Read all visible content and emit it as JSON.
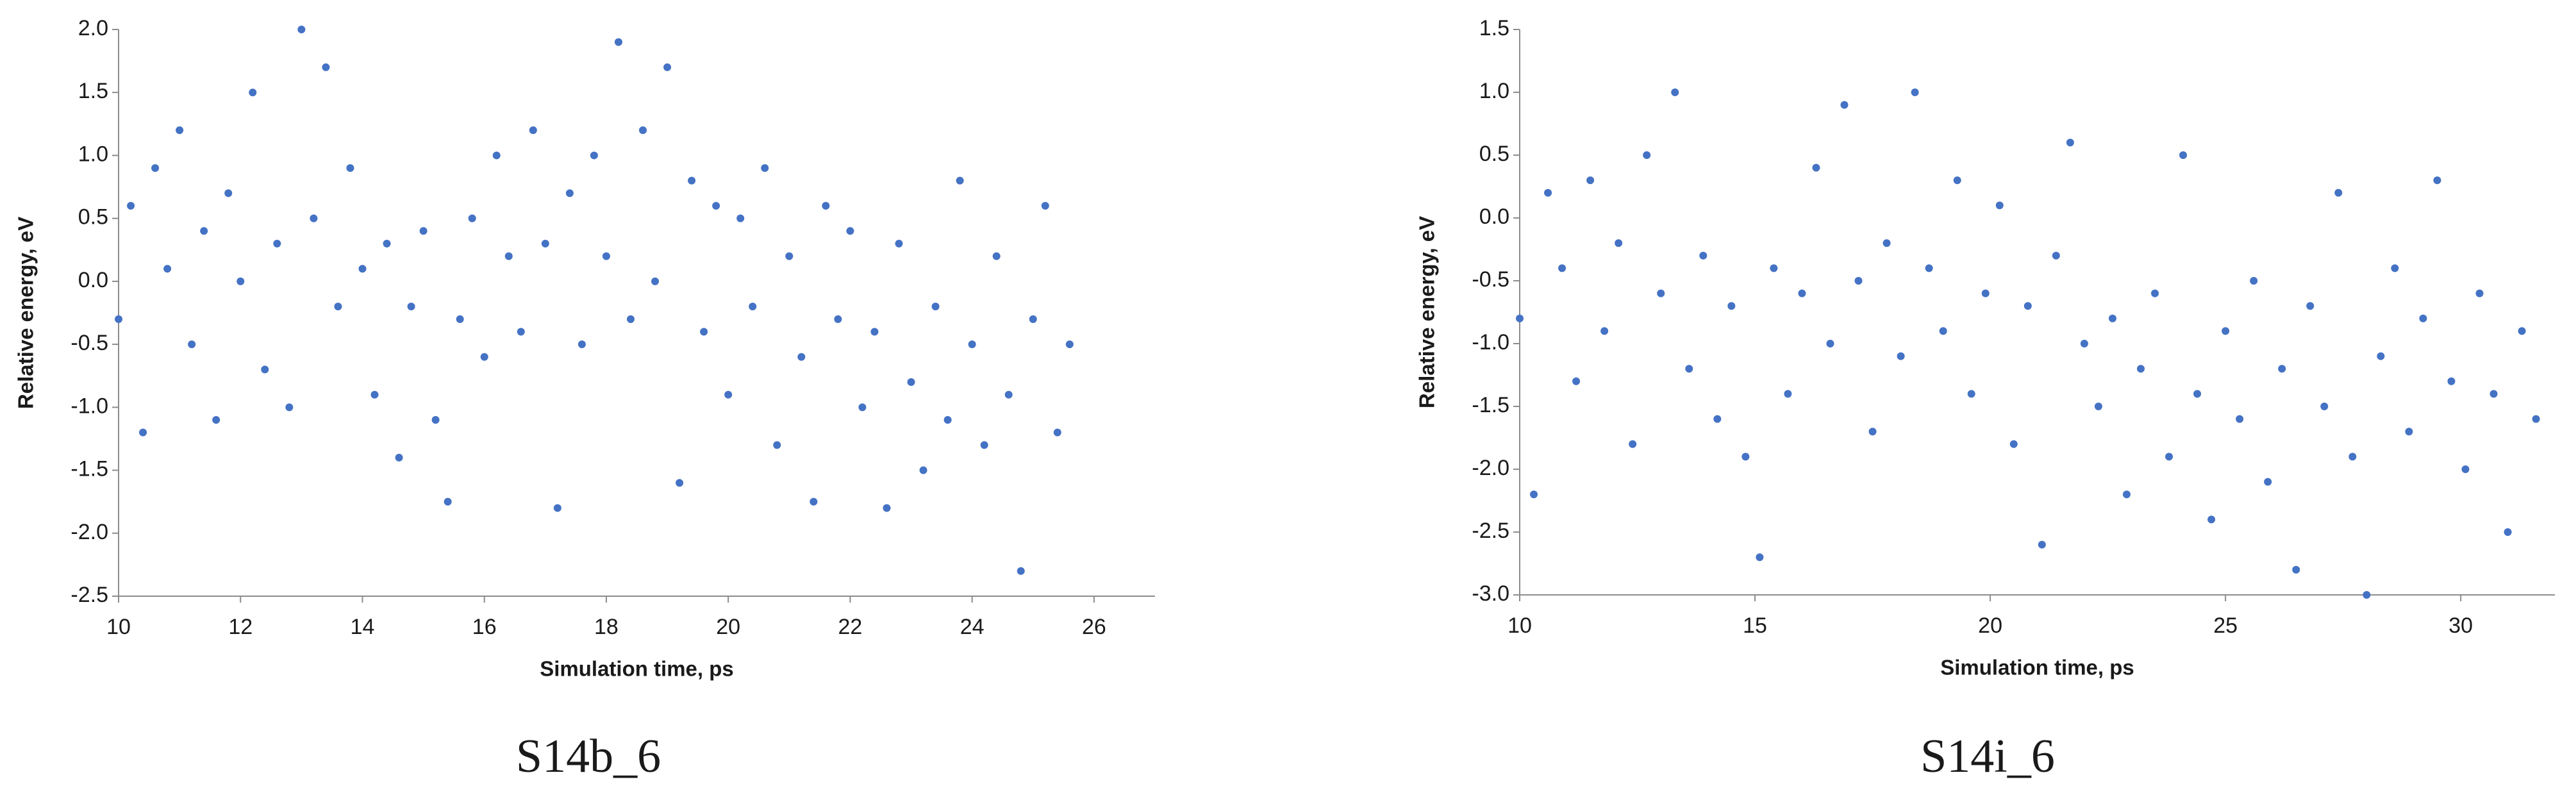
{
  "chart_data": [
    {
      "type": "scatter",
      "caption": "S14b_6",
      "x_label": "Simulation time, ps",
      "y_label": "Relative energy, eV",
      "xlim": [
        10,
        27
      ],
      "xticks": [
        10,
        12,
        14,
        16,
        18,
        20,
        22,
        24,
        26
      ],
      "ylim": [
        -2.5,
        2.0
      ],
      "yticks": [
        {
          "value": -2.5,
          "label": "-2.5"
        },
        {
          "value": -2,
          "label": "-2.0"
        },
        -1.5,
        {
          "value": -1,
          "label": "-1.0"
        },
        -0.5,
        {
          "value": 0,
          "label": "0.0"
        },
        0.5,
        {
          "value": 1,
          "label": "1.0"
        },
        1.5,
        {
          "value": 2,
          "label": "2.0"
        }
      ],
      "color": "#4472c4",
      "x": [
        10.0,
        10.2,
        10.4,
        10.6,
        10.8,
        11.0,
        11.2,
        11.4,
        11.6,
        11.8,
        12.0,
        12.2,
        12.4,
        12.6,
        12.8,
        13.0,
        13.2,
        13.4,
        13.6,
        13.8,
        14.0,
        14.2,
        14.4,
        14.6,
        14.8,
        15.0,
        15.2,
        15.4,
        15.6,
        15.8,
        16.0,
        16.2,
        16.4,
        16.6,
        16.8,
        17.0,
        17.2,
        17.4,
        17.6,
        17.8,
        18.0,
        18.2,
        18.4,
        18.6,
        18.8,
        19.0,
        19.2,
        19.4,
        19.6,
        19.8,
        20.0,
        20.2,
        20.4,
        20.6,
        20.8,
        21.0,
        21.2,
        21.4,
        21.6,
        21.8,
        22.0,
        22.2,
        22.4,
        22.6,
        22.8,
        23.0,
        23.2,
        23.4,
        23.6,
        23.8,
        24.0,
        24.2,
        24.4,
        24.6,
        24.8,
        25.0,
        25.2,
        25.4,
        25.6
      ],
      "values": [
        -0.3,
        0.6,
        -1.2,
        0.9,
        0.1,
        1.2,
        -0.5,
        0.4,
        -1.1,
        0.7,
        0.0,
        1.5,
        -0.7,
        0.3,
        -1.0,
        2.0,
        0.5,
        1.7,
        -0.2,
        0.9,
        0.1,
        -0.9,
        0.3,
        -1.4,
        -0.2,
        0.4,
        -1.1,
        -1.75,
        -0.3,
        0.5,
        -0.6,
        1.0,
        0.2,
        -0.4,
        1.2,
        0.3,
        -1.8,
        0.7,
        -0.5,
        1.0,
        0.2,
        1.9,
        -0.3,
        1.2,
        0.0,
        1.7,
        -1.6,
        0.8,
        -0.4,
        0.6,
        -0.9,
        0.5,
        -0.2,
        0.9,
        -1.3,
        0.2,
        -0.6,
        -1.75,
        0.6,
        -0.3,
        0.4,
        -1.0,
        -0.4,
        -1.8,
        0.3,
        -0.8,
        -1.5,
        -0.2,
        -1.1,
        0.8,
        -0.5,
        -1.3,
        0.2,
        -0.9,
        -2.3,
        -0.3,
        0.6,
        -1.2,
        -0.5
      ]
    },
    {
      "type": "scatter",
      "caption": "S14i_6",
      "x_label": "Simulation time, ps",
      "y_label": "Relative energy, eV",
      "xlim": [
        10,
        32
      ],
      "xticks": [
        10,
        15,
        20,
        25,
        30
      ],
      "ylim": [
        -3.0,
        1.5
      ],
      "yticks": [
        {
          "value": -3,
          "label": "-3.0"
        },
        -2.5,
        {
          "value": -2,
          "label": "-2.0"
        },
        -1.5,
        {
          "value": -1,
          "label": "-1.0"
        },
        -0.5,
        {
          "value": 0,
          "label": "0.0"
        },
        0.5,
        {
          "value": 1,
          "label": "1.0"
        },
        1.5
      ],
      "color": "#4472c4",
      "x": [
        10.0,
        10.3,
        10.6,
        10.9,
        11.2,
        11.5,
        11.8,
        12.1,
        12.4,
        12.7,
        13.0,
        13.3,
        13.6,
        13.9,
        14.2,
        14.5,
        14.8,
        15.1,
        15.4,
        15.7,
        16.0,
        16.3,
        16.6,
        16.9,
        17.2,
        17.5,
        17.8,
        18.1,
        18.4,
        18.7,
        19.0,
        19.3,
        19.6,
        19.9,
        20.2,
        20.5,
        20.8,
        21.1,
        21.4,
        21.7,
        22.0,
        22.3,
        22.6,
        22.9,
        23.2,
        23.5,
        23.8,
        24.1,
        24.4,
        24.7,
        25.0,
        25.3,
        25.6,
        25.9,
        26.2,
        26.5,
        26.8,
        27.1,
        27.4,
        27.7,
        28.0,
        28.3,
        28.6,
        28.9,
        29.2,
        29.5,
        29.8,
        30.1,
        30.4,
        30.7,
        31.0,
        31.3,
        31.6
      ],
      "values": [
        -0.8,
        -2.2,
        0.2,
        -0.4,
        -1.3,
        0.3,
        -0.9,
        -0.2,
        -1.8,
        0.5,
        -0.6,
        1.0,
        -1.2,
        -0.3,
        -1.6,
        -0.7,
        -1.9,
        -2.7,
        -0.4,
        -1.4,
        -0.6,
        0.4,
        -1.0,
        0.9,
        -0.5,
        -1.7,
        -0.2,
        -1.1,
        1.0,
        -0.4,
        -0.9,
        0.3,
        -1.4,
        -0.6,
        0.1,
        -1.8,
        -0.7,
        -2.6,
        -0.3,
        0.6,
        -1.0,
        -1.5,
        -0.8,
        -2.2,
        -1.2,
        -0.6,
        -1.9,
        0.5,
        -1.4,
        -2.4,
        -0.9,
        -1.6,
        -0.5,
        -2.1,
        -1.2,
        -2.8,
        -0.7,
        -1.5,
        0.2,
        -1.9,
        -3.0,
        -1.1,
        -0.4,
        -1.7,
        -0.8,
        0.3,
        -1.3,
        -2.0,
        -0.6,
        -1.4,
        -2.5,
        -0.9,
        -1.6
      ]
    }
  ]
}
